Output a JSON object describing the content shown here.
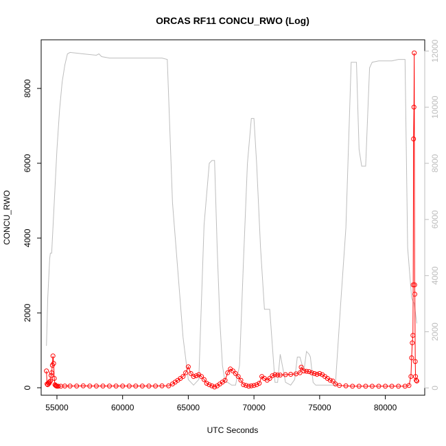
{
  "chart_data": {
    "type": "scatter",
    "title": "ORCAS RF11 CONCU_RWO (Log)",
    "xlabel": "UTC Seconds",
    "ylabel": "CONCU_RWO",
    "xlim": [
      53800,
      83000
    ],
    "ylim": [
      -200,
      9300
    ],
    "y2lim": [
      -260,
      12400
    ],
    "x_ticks": [
      55000,
      60000,
      65000,
      70000,
      75000,
      80000
    ],
    "y_ticks": [
      0,
      2000,
      4000,
      6000,
      8000
    ],
    "y2_ticks": [
      0,
      2000,
      4000,
      6000,
      8000,
      10000,
      12000
    ],
    "colors": {
      "primary": "#ff0000",
      "secondary": "#bdbdbd"
    },
    "series": [
      {
        "axis": "left",
        "style": "points-and-line",
        "color": "#ff0000",
        "x": [
          54200,
          54250,
          54300,
          54350,
          54400,
          54450,
          54500,
          54550,
          54600,
          54650,
          54700,
          54750,
          54800,
          54850,
          54900,
          54950,
          55000,
          55100,
          55300,
          55600,
          56000,
          56500,
          57000,
          57500,
          58000,
          58500,
          59000,
          59500,
          60000,
          60500,
          61000,
          61500,
          62000,
          62500,
          63000,
          63500,
          63800,
          64000,
          64200,
          64400,
          64600,
          64800,
          65000,
          65200,
          65400,
          65600,
          65800,
          66000,
          66200,
          66400,
          66600,
          66800,
          67000,
          67200,
          67400,
          67600,
          67800,
          68000,
          68200,
          68400,
          68600,
          68800,
          69000,
          69200,
          69400,
          69600,
          69800,
          70000,
          70200,
          70400,
          70600,
          70800,
          71000,
          71200,
          71400,
          71600,
          71800,
          72000,
          72400,
          72800,
          73200,
          73500,
          73600,
          73800,
          74000,
          74200,
          74400,
          74600,
          74800,
          75000,
          75200,
          75400,
          75600,
          75800,
          76000,
          76200,
          76500,
          77000,
          77500,
          78000,
          78500,
          79000,
          79500,
          80000,
          80500,
          81000,
          81500,
          81800,
          81950,
          82000,
          82050,
          82100,
          82120,
          82150,
          82180,
          82200,
          82230,
          82250,
          82280,
          82300,
          82350,
          82400
        ],
        "y": [
          450,
          100,
          80,
          130,
          120,
          150,
          180,
          330,
          400,
          600,
          850,
          650,
          250,
          80,
          60,
          50,
          40,
          40,
          40,
          45,
          45,
          45,
          50,
          45,
          45,
          45,
          45,
          45,
          45,
          45,
          45,
          45,
          45,
          45,
          50,
          50,
          100,
          150,
          200,
          250,
          300,
          400,
          560,
          380,
          300,
          320,
          350,
          300,
          220,
          120,
          80,
          50,
          20,
          50,
          100,
          150,
          200,
          400,
          500,
          450,
          380,
          300,
          200,
          80,
          60,
          40,
          50,
          60,
          80,
          120,
          300,
          250,
          200,
          250,
          320,
          350,
          340,
          340,
          350,
          360,
          370,
          400,
          550,
          450,
          440,
          430,
          400,
          380,
          360,
          380,
          350,
          300,
          250,
          200,
          180,
          100,
          60,
          50,
          40,
          40,
          40,
          40,
          40,
          40,
          40,
          40,
          40,
          60,
          300,
          800,
          1200,
          1400,
          2750,
          6650,
          7500,
          8950,
          2750,
          2500,
          700,
          300,
          200,
          180
        ]
      },
      {
        "axis": "right",
        "style": "line",
        "color": "#bdbdbd",
        "x": [
          54200,
          54300,
          54450,
          54500,
          54600,
          55000,
          55200,
          55400,
          55600,
          55800,
          56000,
          57000,
          58000,
          58200,
          58400,
          59000,
          60000,
          61000,
          62000,
          63000,
          63400,
          63800,
          64200,
          64600,
          65000,
          65400,
          65600,
          65800,
          66200,
          66600,
          66800,
          67000,
          67200,
          67400,
          67600,
          67800,
          68000,
          68300,
          68600,
          68900,
          69200,
          69500,
          69800,
          70000,
          70200,
          70500,
          70800,
          71200,
          71600,
          71800,
          72000,
          72400,
          72800,
          73100,
          73300,
          73500,
          73800,
          74000,
          74200,
          74300,
          74500,
          74700,
          75000,
          75300,
          75500,
          75800,
          76200,
          76600,
          77000,
          77400,
          77800,
          78000,
          78200,
          78500,
          78800,
          79000,
          79500,
          80000,
          80500,
          81000,
          81500,
          81700,
          82000,
          82200,
          82400
        ],
        "y": [
          1500,
          3200,
          4600,
          4800,
          4800,
          8500,
          9900,
          10900,
          11500,
          11900,
          11950,
          11900,
          11850,
          11900,
          11800,
          11750,
          11750,
          11750,
          11750,
          11750,
          11700,
          6600,
          4200,
          1800,
          300,
          100,
          200,
          300,
          5800,
          8000,
          8100,
          8100,
          5000,
          2400,
          800,
          200,
          200,
          100,
          100,
          800,
          4500,
          8000,
          9600,
          9600,
          8000,
          5000,
          2800,
          2800,
          200,
          200,
          1200,
          200,
          100,
          300,
          1100,
          1100,
          600,
          1300,
          1200,
          1100,
          200,
          100,
          100,
          100,
          100,
          100,
          100,
          3000,
          5700,
          11600,
          11600,
          8500,
          7900,
          7900,
          11400,
          11600,
          11650,
          11650,
          11650,
          11700,
          11700,
          5000,
          3200,
          3000,
          2300
        ]
      }
    ]
  }
}
